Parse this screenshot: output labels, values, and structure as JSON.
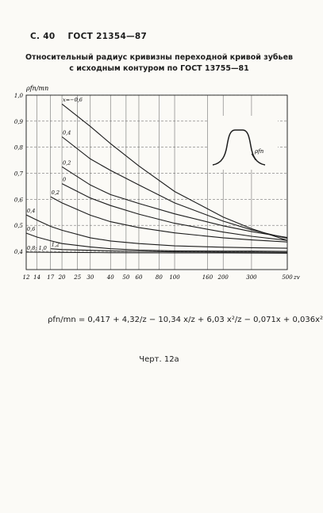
{
  "header": {
    "page": "С. 40",
    "standard": "ГОСТ 21354—87"
  },
  "title_line1": "Относительный радиус кривизны переходной кривой зубьев",
  "title_line2": "с исходным контуром по ГОСТ 13755—81",
  "formula": "ρfn/mn = 0,417 + 4,32/z − 10,34 x/z + 6,03 x²/z − 0,071x + 0,036x²",
  "caption": "Черт. 12а",
  "inset_label": "ρfn",
  "chart_data": {
    "type": "line",
    "ylabel": "ρfn/mn",
    "xlabel": "zv",
    "x_scale": "log",
    "xlim": [
      12,
      500
    ],
    "ylim": [
      0.33,
      1.0
    ],
    "x_ticks": [
      12,
      14,
      17,
      20,
      25,
      30,
      40,
      50,
      60,
      80,
      100,
      160,
      200,
      300,
      500
    ],
    "x_tick_labels": [
      "12",
      "14",
      "17",
      "20",
      "25",
      "30",
      "40",
      "50",
      "60",
      "80",
      "100",
      "160",
      "200",
      "300",
      "500"
    ],
    "y_ticks": [
      0.4,
      0.5,
      0.6,
      0.7,
      0.8,
      0.9,
      1.0
    ],
    "y_tick_labels": [
      "0,4",
      "0,5",
      "0,6",
      "0,7",
      "0,8",
      "0,9",
      "1,0"
    ],
    "series": [
      {
        "name": "x=−0,6",
        "x": [
          20,
          30,
          40,
          60,
          100,
          200,
          300,
          500
        ],
        "y": [
          0.966,
          0.88,
          0.814,
          0.728,
          0.63,
          0.532,
          0.487,
          0.442
        ]
      },
      {
        "name": "0,4",
        "x": [
          20,
          30,
          40,
          60,
          100,
          200,
          300,
          500
        ],
        "y": [
          0.84,
          0.755,
          0.711,
          0.655,
          0.586,
          0.516,
          0.483,
          0.45
        ]
      },
      {
        "name": "0,2",
        "x": [
          20,
          30,
          40,
          60,
          100,
          200,
          300,
          500
        ],
        "y": [
          0.725,
          0.655,
          0.618,
          0.584,
          0.544,
          0.498,
          0.476,
          0.453
        ]
      },
      {
        "name": "0",
        "x": [
          20,
          30,
          40,
          60,
          100,
          200,
          300,
          500
        ],
        "y": [
          0.66,
          0.605,
          0.576,
          0.543,
          0.508,
          0.474,
          0.458,
          0.442
        ]
      },
      {
        "name": "0,2",
        "x": [
          17,
          20,
          30,
          40,
          60,
          100,
          200,
          300,
          500
        ],
        "y": [
          0.61,
          0.586,
          0.539,
          0.514,
          0.491,
          0.471,
          0.452,
          0.444,
          0.436
        ]
      },
      {
        "name": "0,4",
        "x": [
          12,
          14,
          17,
          20,
          30,
          40,
          60,
          100,
          200,
          300,
          500
        ],
        "y": [
          0.54,
          0.52,
          0.496,
          0.481,
          0.452,
          0.44,
          0.43,
          0.421,
          0.416,
          0.414,
          0.412
        ]
      },
      {
        "name": "0,6",
        "x": [
          12,
          14,
          17,
          20,
          30,
          40,
          60,
          100,
          200,
          300,
          500
        ],
        "y": [
          0.47,
          0.455,
          0.441,
          0.43,
          0.417,
          0.41,
          0.405,
          0.402,
          0.401,
          0.401,
          0.4
        ]
      },
      {
        "name": "1,2",
        "x": [
          17,
          20,
          30,
          40,
          60,
          100,
          200,
          300,
          500
        ],
        "y": [
          0.41,
          0.407,
          0.404,
          0.402,
          0.4,
          0.398,
          0.397,
          0.397,
          0.396
        ]
      },
      {
        "name": "0,8; 1,0",
        "x": [
          12,
          20,
          40,
          100,
          200,
          500
        ],
        "y": [
          0.397,
          0.396,
          0.395,
          0.394,
          0.394,
          0.393
        ]
      }
    ]
  }
}
